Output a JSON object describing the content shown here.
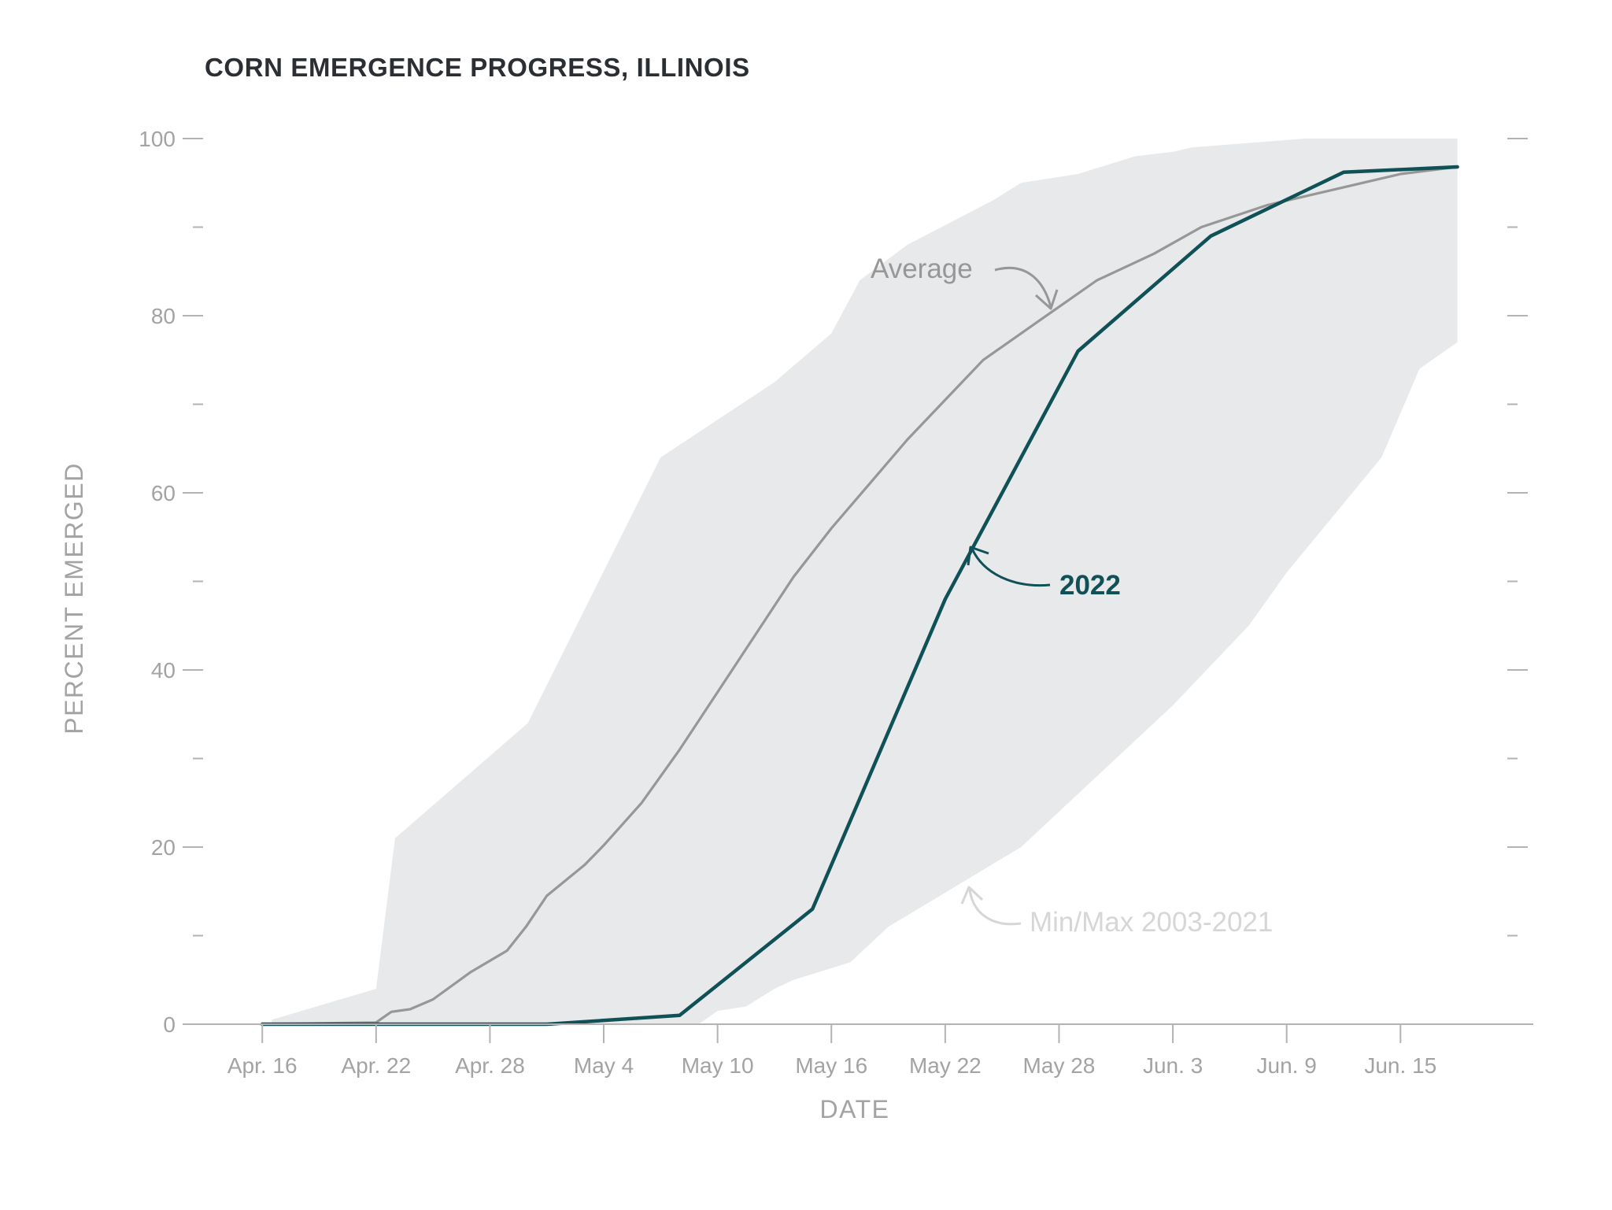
{
  "colors": {
    "band": "#e8e9ea",
    "average": "#979797",
    "series_2022": "#0f5156",
    "axis": "#b3b3b3",
    "tick_text": "#a3a3a3",
    "title": "#2b2f33",
    "minmax_label": "#d6d6d6"
  },
  "chart_data": {
    "type": "line",
    "title": "CORN EMERGENCE PROGRESS, ILLINOIS",
    "xlabel": "DATE",
    "ylabel": "PERCENT EMERGED",
    "x_unit": "days since Apr. 16",
    "xlim": [
      -4.2,
      67
    ],
    "ylim": [
      0,
      100
    ],
    "y_major_ticks": [
      0,
      20,
      40,
      60,
      80,
      100
    ],
    "y_minor_ticks": [
      10,
      30,
      50,
      70,
      90
    ],
    "x_ticks": [
      {
        "day": 0,
        "label": "Apr. 16"
      },
      {
        "day": 6,
        "label": "Apr. 22"
      },
      {
        "day": 12,
        "label": "Apr. 28"
      },
      {
        "day": 18,
        "label": "May 4"
      },
      {
        "day": 24,
        "label": "May 10"
      },
      {
        "day": 30,
        "label": "May 16"
      },
      {
        "day": 36,
        "label": "May 22"
      },
      {
        "day": 42,
        "label": "May 28"
      },
      {
        "day": 48,
        "label": "Jun. 3"
      },
      {
        "day": 54,
        "label": "Jun. 9"
      },
      {
        "day": 60,
        "label": "Jun. 15"
      }
    ],
    "series": [
      {
        "name": "Min/Max 2003-2021",
        "kind": "band",
        "upper": [
          [
            0.5,
            0.5
          ],
          [
            6,
            4
          ],
          [
            7,
            21
          ],
          [
            14,
            34
          ],
          [
            21,
            64
          ],
          [
            27,
            72.5
          ],
          [
            30,
            78
          ],
          [
            31.5,
            84
          ],
          [
            34,
            88
          ],
          [
            38.5,
            93
          ],
          [
            40,
            95
          ],
          [
            43,
            96
          ],
          [
            46,
            98
          ],
          [
            48,
            98.5
          ],
          [
            49,
            99
          ],
          [
            55,
            100
          ],
          [
            63,
            100
          ]
        ],
        "lower": [
          [
            0.5,
            0
          ],
          [
            23,
            0
          ],
          [
            24,
            1.5
          ],
          [
            25.5,
            2
          ],
          [
            27,
            4
          ],
          [
            28,
            5
          ],
          [
            31,
            7
          ],
          [
            33,
            11
          ],
          [
            40,
            20
          ],
          [
            46,
            32
          ],
          [
            48,
            36
          ],
          [
            52,
            45
          ],
          [
            54,
            51
          ],
          [
            59,
            64
          ],
          [
            61,
            74
          ],
          [
            63,
            77
          ]
        ]
      },
      {
        "name": "Average",
        "kind": "line",
        "points": [
          [
            0,
            0
          ],
          [
            6,
            0.2
          ],
          [
            6.8,
            1.4
          ],
          [
            7.8,
            1.7
          ],
          [
            9,
            2.8
          ],
          [
            11,
            5.9
          ],
          [
            12.9,
            8.3
          ],
          [
            13.9,
            11
          ],
          [
            15,
            14.5
          ],
          [
            17,
            18
          ],
          [
            18,
            20.2
          ],
          [
            20,
            25
          ],
          [
            22,
            31
          ],
          [
            24,
            37.5
          ],
          [
            26,
            44
          ],
          [
            28,
            50.5
          ],
          [
            30,
            56
          ],
          [
            32,
            61
          ],
          [
            34,
            66
          ],
          [
            36,
            70.5
          ],
          [
            38,
            75
          ],
          [
            41,
            79.5
          ],
          [
            44,
            84
          ],
          [
            47,
            87
          ],
          [
            49.5,
            90
          ],
          [
            53,
            92.5
          ],
          [
            57,
            94.5
          ],
          [
            60,
            96
          ],
          [
            63,
            96.8
          ]
        ]
      },
      {
        "name": "2022",
        "kind": "line",
        "points": [
          [
            0,
            0
          ],
          [
            15,
            0
          ],
          [
            22,
            1
          ],
          [
            29,
            13
          ],
          [
            36,
            48
          ],
          [
            43,
            76
          ],
          [
            50,
            89
          ],
          [
            57,
            96.2
          ],
          [
            63,
            96.8
          ]
        ]
      }
    ],
    "annotations": [
      {
        "text": "Average",
        "target": "Average"
      },
      {
        "text": "2022",
        "target": "2022"
      },
      {
        "text": "Min/Max 2003-2021",
        "target": "Min/Max 2003-2021"
      }
    ]
  }
}
